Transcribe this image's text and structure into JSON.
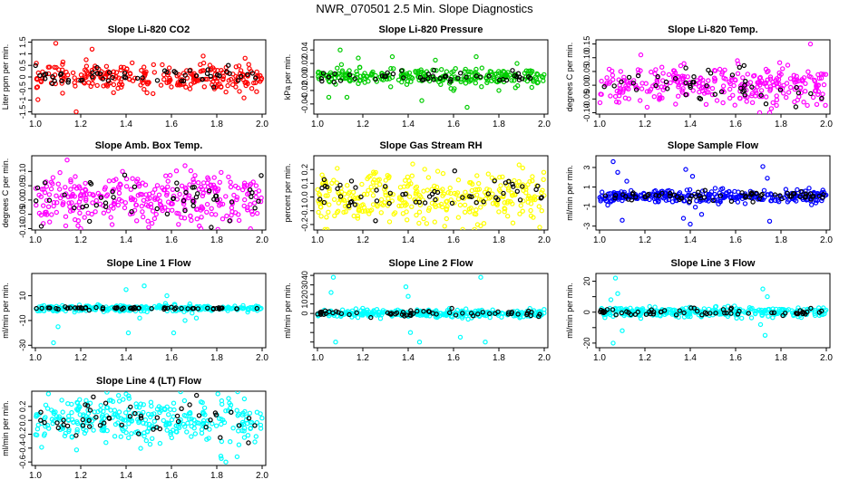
{
  "page_title": "NWR_070501  2.5 Min. Slope Diagnostics",
  "colors": {
    "red": "#ff0000",
    "green": "#00cc00",
    "magenta": "#ff00ff",
    "yellow": "#ffff00",
    "blue": "#0000ff",
    "cyan": "#00ffff",
    "black": "#000000"
  },
  "chart_data": [
    {
      "type": "scatter",
      "title": "Slope Li-820 CO2",
      "ylabel": "Liter ppm per min.",
      "xlim": [
        1.0,
        2.0
      ],
      "xticks": [
        "1.0",
        "1.2",
        "1.4",
        "1.6",
        "1.8",
        "2.0"
      ],
      "ylim": [
        -1.6,
        1.6
      ],
      "yticks": [
        -1.5,
        -1.0,
        -0.5,
        0.0,
        0.5,
        1.0,
        1.5
      ],
      "ytick_labels": [
        "-1.5",
        "-1",
        "-0.5",
        "0",
        "0.5",
        "1",
        "1.5"
      ],
      "series_color": "#ff0000",
      "spread": 0.28,
      "count": 260,
      "black_count": 55,
      "black_spread": 0.18,
      "outliers": [
        [
          1.09,
          1.45
        ],
        [
          1.18,
          -1.5
        ],
        [
          1.25,
          1.2
        ],
        [
          1.12,
          -0.7
        ],
        [
          1.92,
          -0.9
        ],
        [
          1.74,
          0.9
        ]
      ]
    },
    {
      "type": "scatter",
      "title": "Slope Li-820 Pressure",
      "ylabel": "kPa per min.",
      "xlim": [
        1.0,
        2.0
      ],
      "xticks": [
        "1.0",
        "1.2",
        "1.4",
        "1.6",
        "1.8",
        "2.0"
      ],
      "ylim": [
        -0.055,
        0.055
      ],
      "yticks": [
        -0.04,
        -0.02,
        0.0,
        0.02,
        0.04
      ],
      "ytick_labels": [
        "-0.04",
        "-0.02",
        "0.00",
        "0.02",
        "0.04"
      ],
      "series_color": "#00cc00",
      "spread": 0.006,
      "count": 260,
      "black_count": 50,
      "black_spread": 0.004,
      "outliers": [
        [
          1.1,
          0.04
        ],
        [
          1.13,
          -0.03
        ],
        [
          1.33,
          0.03
        ],
        [
          1.46,
          -0.035
        ],
        [
          1.52,
          0.025
        ],
        [
          1.66,
          -0.045
        ],
        [
          1.7,
          0.03
        ],
        [
          1.18,
          0.028
        ],
        [
          1.88,
          0.02
        ],
        [
          1.05,
          -0.03
        ],
        [
          1.6,
          -0.02
        ],
        [
          1.8,
          -0.02
        ]
      ]
    },
    {
      "type": "scatter",
      "title": "Slope Li-820 Temp.",
      "ylabel": "degrees C per min.",
      "xlim": [
        1.0,
        2.0
      ],
      "xticks": [
        "1.0",
        "1.2",
        "1.4",
        "1.6",
        "1.8",
        "2.0"
      ],
      "ylim": [
        -0.105,
        0.165
      ],
      "yticks": [
        -0.1,
        -0.05,
        0.0,
        0.05,
        0.1,
        0.15
      ],
      "ytick_labels": [
        "-0.10",
        "-0.05",
        "0.00",
        "0.05",
        "0.10",
        "0.15"
      ],
      "series_color": "#ff00ff",
      "spread": 0.035,
      "count": 300,
      "black_count": 45,
      "black_spread": 0.03,
      "outliers": [
        [
          1.93,
          0.15
        ],
        [
          1.75,
          -0.1
        ],
        [
          1.21,
          -0.08
        ]
      ]
    },
    {
      "type": "scatter",
      "title": "Slope Amb. Box Temp.",
      "ylabel": "degrees C per min.",
      "xlim": [
        1.0,
        2.0
      ],
      "xticks": [
        "1.0",
        "1.2",
        "1.4",
        "1.6",
        "1.8",
        "2.0"
      ],
      "ylim": [
        -0.105,
        0.155
      ],
      "yticks": [
        -0.1,
        -0.05,
        0.0,
        0.05,
        0.1
      ],
      "ytick_labels": [
        "-0.10",
        "-0.05",
        "0.00",
        "0.05",
        "0.10"
      ],
      "series_color": "#ff00ff",
      "spread": 0.045,
      "count": 320,
      "black_count": 50,
      "black_spread": 0.04,
      "outliers": [
        [
          1.14,
          0.14
        ],
        [
          1.66,
          0.12
        ],
        [
          1.2,
          -0.1
        ],
        [
          1.73,
          -0.1
        ]
      ]
    },
    {
      "type": "scatter",
      "title": "Slope Gas Stream RH",
      "ylabel": "percent per min.",
      "xlim": [
        1.0,
        2.0
      ],
      "xticks": [
        "1.0",
        "1.2",
        "1.4",
        "1.6",
        "1.8",
        "2.0"
      ],
      "ylim": [
        -0.24,
        0.3
      ],
      "yticks": [
        -0.2,
        -0.1,
        0.0,
        0.1,
        0.2
      ],
      "ytick_labels": [
        "-0.2",
        "-0.1",
        "0.0",
        "0.1",
        "0.2"
      ],
      "series_color": "#ffff00",
      "spread": 0.09,
      "count": 330,
      "black_count": 55,
      "black_spread": 0.07,
      "outliers": [
        [
          1.98,
          -0.22
        ],
        [
          1.42,
          0.24
        ]
      ]
    },
    {
      "type": "scatter",
      "title": "Slope Sample Flow",
      "ylabel": "ml/min per min.",
      "xlim": [
        1.0,
        2.0
      ],
      "xticks": [
        "1.0",
        "1.2",
        "1.4",
        "1.6",
        "1.8",
        "2.0"
      ],
      "ylim": [
        -3.4,
        4.2
      ],
      "yticks": [
        -3,
        -1,
        1,
        3
      ],
      "ytick_labels": [
        "-3",
        "-1",
        "1",
        "3"
      ],
      "series_color": "#0000ff",
      "spread": 0.35,
      "count": 300,
      "black_count": 70,
      "black_spread": 0.25,
      "outliers": [
        [
          1.06,
          3.6
        ],
        [
          1.08,
          2.5
        ],
        [
          1.1,
          -2.4
        ],
        [
          1.12,
          1.6
        ],
        [
          1.38,
          2.8
        ],
        [
          1.4,
          -2.8
        ],
        [
          1.37,
          -2.2
        ],
        [
          1.41,
          2.1
        ],
        [
          1.72,
          3.1
        ],
        [
          1.75,
          -2.5
        ],
        [
          1.74,
          1.9
        ],
        [
          1.45,
          -1.8
        ]
      ]
    },
    {
      "type": "scatter",
      "title": "Slope Line 1 Flow",
      "ylabel": "ml/min per min.",
      "xlim": [
        1.0,
        2.0
      ],
      "xticks": [
        "1.0",
        "1.2",
        "1.4",
        "1.6",
        "1.8",
        "2.0"
      ],
      "ylim": [
        -32,
        28
      ],
      "yticks": [
        -30,
        -10,
        10
      ],
      "ytick_labels": [
        "-30",
        "-10",
        "10"
      ],
      "series_color": "#00ffff",
      "spread": 1.2,
      "count": 300,
      "black_count": 65,
      "black_spread": 0.5,
      "outliers": [
        [
          1.08,
          -28
        ],
        [
          1.41,
          -20
        ],
        [
          1.48,
          18
        ],
        [
          1.58,
          10
        ],
        [
          1.61,
          -20
        ],
        [
          1.66,
          -10
        ],
        [
          1.4,
          15
        ],
        [
          1.71,
          -8
        ],
        [
          1.1,
          -15
        ],
        [
          1.46,
          -8
        ]
      ]
    },
    {
      "type": "scatter",
      "title": "Slope Line 2 Flow",
      "ylabel": "ml/min per min.",
      "xlim": [
        1.0,
        2.0
      ],
      "xticks": [
        "1.0",
        "1.2",
        "1.4",
        "1.6",
        "1.8",
        "2.0"
      ],
      "ylim": [
        -36,
        42
      ],
      "yticks": [
        -30,
        -20,
        -10,
        0,
        10,
        20,
        30,
        40
      ],
      "ytick_labels": [
        "",
        "",
        "",
        "0",
        "10",
        "20",
        "30",
        "40"
      ],
      "series_color": "#00ffff",
      "spread": 2.0,
      "count": 300,
      "black_count": 60,
      "black_spread": 1.5,
      "outliers": [
        [
          1.07,
          38
        ],
        [
          1.08,
          -30
        ],
        [
          1.06,
          22
        ],
        [
          1.39,
          28
        ],
        [
          1.41,
          -20
        ],
        [
          1.45,
          -30
        ],
        [
          1.63,
          -25
        ],
        [
          1.72,
          38
        ],
        [
          1.74,
          -30
        ],
        [
          1.4,
          18
        ]
      ]
    },
    {
      "type": "scatter",
      "title": "Slope Line 3 Flow",
      "ylabel": "ml/min per min.",
      "xlim": [
        1.0,
        2.0
      ],
      "xticks": [
        "1.0",
        "1.2",
        "1.4",
        "1.6",
        "1.8",
        "2.0"
      ],
      "ylim": [
        -23,
        25
      ],
      "yticks": [
        -20,
        -10,
        0,
        10,
        20
      ],
      "ytick_labels": [
        "-20",
        "",
        "0",
        "",
        "20"
      ],
      "series_color": "#00ffff",
      "spread": 1.6,
      "count": 300,
      "black_count": 60,
      "black_spread": 1.2,
      "outliers": [
        [
          1.07,
          22
        ],
        [
          1.06,
          -20
        ],
        [
          1.08,
          12
        ],
        [
          1.1,
          -12
        ],
        [
          1.72,
          15
        ],
        [
          1.73,
          -15
        ],
        [
          1.74,
          10
        ],
        [
          1.71,
          -8
        ],
        [
          1.05,
          8
        ]
      ]
    },
    {
      "type": "scatter",
      "title": "Slope Line 4 (LT) Flow",
      "ylabel": "ml/min per min.",
      "xlim": [
        1.0,
        2.0
      ],
      "xticks": [
        "1.0",
        "1.2",
        "1.4",
        "1.6",
        "1.8",
        "2.0"
      ],
      "ylim": [
        -0.65,
        0.42
      ],
      "yticks": [
        -0.6,
        -0.4,
        -0.2,
        0.0,
        0.2
      ],
      "ytick_labels": [
        "-0.6",
        "-0.4",
        "-0.2",
        "0.0",
        "0.2"
      ],
      "series_color": "#00ffff",
      "spread": 0.17,
      "count": 330,
      "black_count": 50,
      "black_spread": 0.14,
      "outliers": [
        [
          1.84,
          -0.6
        ],
        [
          1.82,
          -0.55
        ],
        [
          1.4,
          0.38
        ]
      ]
    }
  ]
}
